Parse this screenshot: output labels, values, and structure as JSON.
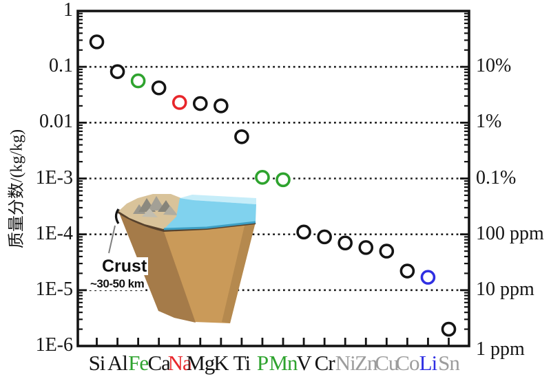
{
  "figure": {
    "description": "Scatter chart of element mass fractions in the Earth's crust (log scale) with 3D crust block inset"
  },
  "chart_data": {
    "type": "scatter",
    "title": "",
    "xlabel": "",
    "ylabel": "质量分数/(kg/kg)",
    "y_scale": "log",
    "ylim": [
      1e-06,
      1
    ],
    "y_tick_labels": [
      "1",
      "0.1",
      "0.01",
      "1E-3",
      "1E-4",
      "1E-5",
      "1E-6"
    ],
    "right_axis_tick_labels": [
      "10%",
      "1%",
      "0.1%",
      "100 ppm",
      "10 ppm",
      "1 ppm"
    ],
    "grid": "horizontal dotted black lines at each decade",
    "legend": "none",
    "x": [
      "Si",
      "Al",
      "Fe",
      "Ca",
      "Na",
      "Mg",
      "K",
      "Ti",
      "P",
      "Mn",
      "V",
      "Cr",
      "Ni",
      "Zn",
      "Cu",
      "Co",
      "Li",
      "Sn"
    ],
    "y": [
      0.28,
      0.082,
      0.056,
      0.042,
      0.023,
      0.022,
      0.02,
      0.0056,
      0.00105,
      0.00095,
      0.00011,
      9e-05,
      7e-05,
      5.8e-05,
      5e-05,
      2.2e-05,
      1.7e-05,
      2e-06
    ],
    "point_colors": [
      "black",
      "black",
      "green",
      "black",
      "red",
      "black",
      "black",
      "black",
      "green",
      "green",
      "black",
      "black",
      "black",
      "black",
      "black",
      "black",
      "blue",
      "black"
    ],
    "label_colors": [
      "black",
      "black",
      "green",
      "black",
      "red",
      "black",
      "black",
      "black",
      "green",
      "green",
      "black",
      "black",
      "gray",
      "gray",
      "gray",
      "gray",
      "blue",
      "gray"
    ],
    "palette": {
      "black": "#141414",
      "green": "#2ea32e",
      "red": "#e8262b",
      "blue": "#2f2fe2",
      "gray": "#9c9c9c"
    }
  },
  "inset": {
    "label": "Crust",
    "sublabel": "~30-50 km"
  }
}
